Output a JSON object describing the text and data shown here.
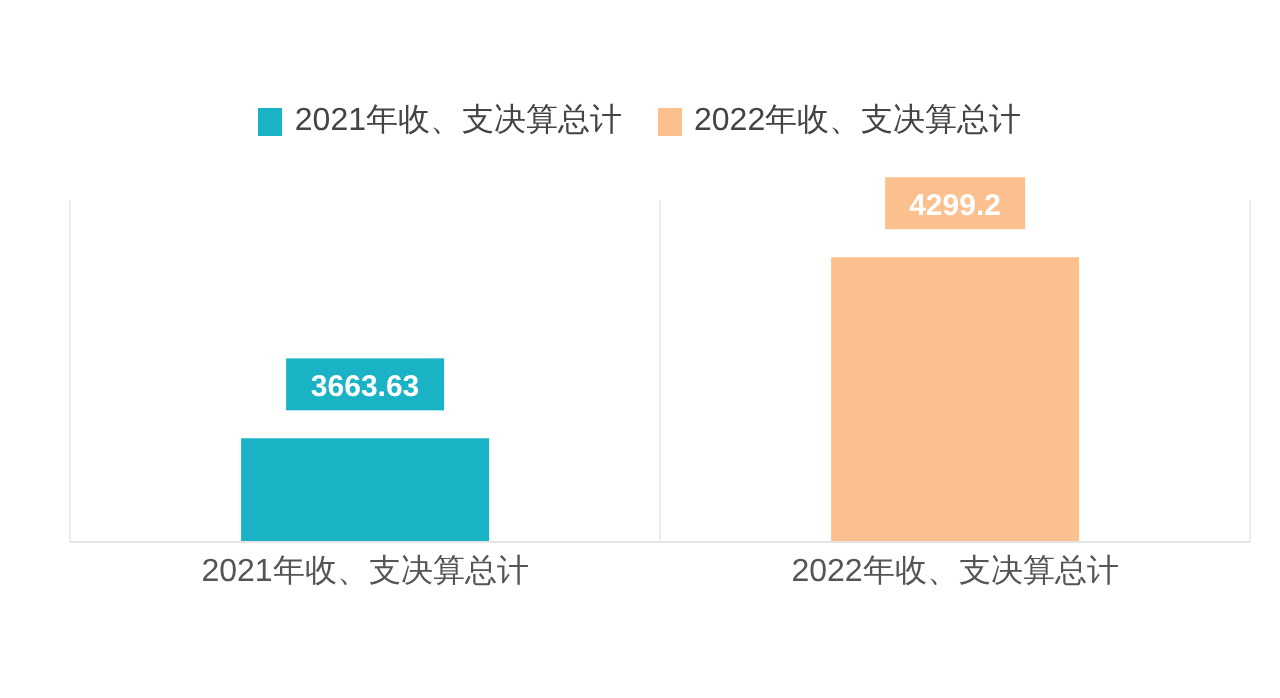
{
  "chart_data": {
    "type": "bar",
    "categories": [
      "2021年收、支决算总计",
      "2022年收、支决算总计"
    ],
    "series": [
      {
        "name": "2021年收、支决算总计",
        "color": "#1ab3c6",
        "values": [
          3663.63,
          null
        ]
      },
      {
        "name": "2022年收、支决算总计",
        "color": "#fcc08f",
        "values": [
          null,
          4299.2
        ]
      }
    ],
    "ylim": [
      3300,
      4500
    ],
    "data_labels": true,
    "grid": "x",
    "legend": "top"
  }
}
